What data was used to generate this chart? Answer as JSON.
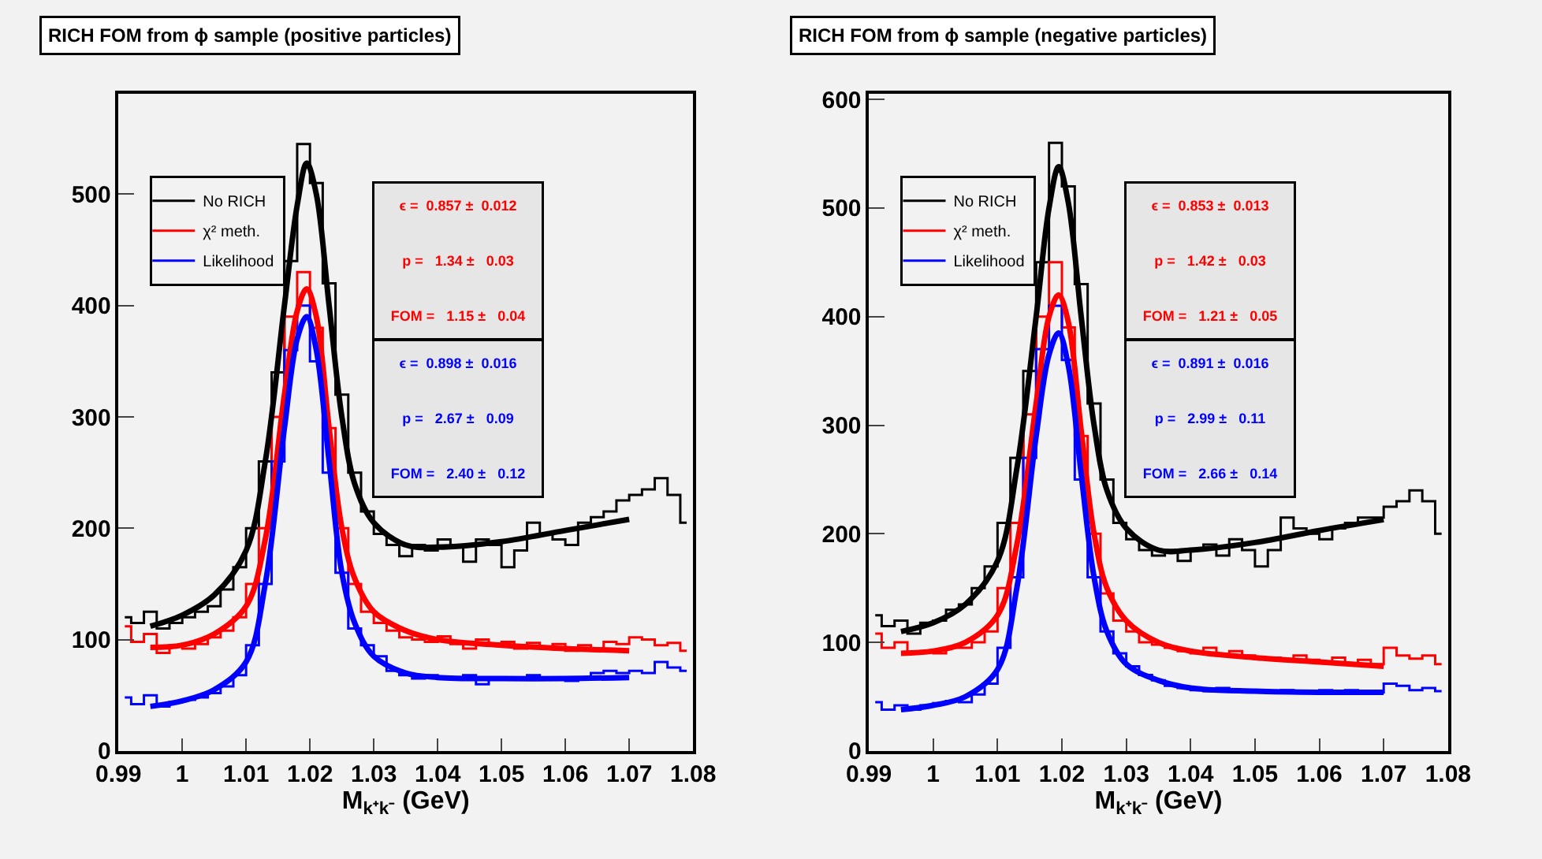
{
  "chart_data": [
    {
      "type": "step",
      "title": "RICH FOM from ϕ sample (positive particles)",
      "xlabel": "M$_{k⁺k⁻}$ (GeV)",
      "xlim": [
        0.99,
        1.08
      ],
      "xticks": [
        0.99,
        1,
        1.01,
        1.02,
        1.03,
        1.04,
        1.05,
        1.06,
        1.07,
        1.08
      ],
      "ylim": [
        0,
        590
      ],
      "yticks": [
        0,
        100,
        200,
        300,
        400,
        500
      ],
      "grid": false,
      "legend": "top left",
      "marker": "none",
      "line_style": "solid",
      "annotations": [
        "ϵ =  0.857 ±  0.012\np =   1.34 ±   0.03\nFOM =   1.15 ±   0.04",
        "ϵ =  0.898 ±  0.016\np =   2.67 ±   0.09\nFOM =   2.40 ±   0.12"
      ],
      "series": [
        {
          "name": "No RICH",
          "color": "#000000",
          "x": [
            0.991,
            0.993,
            0.995,
            0.997,
            0.999,
            1.001,
            1.003,
            1.005,
            1.007,
            1.009,
            1.011,
            1.013,
            1.015,
            1.017,
            1.019,
            1.021,
            1.023,
            1.025,
            1.027,
            1.029,
            1.031,
            1.033,
            1.035,
            1.037,
            1.039,
            1.041,
            1.043,
            1.045,
            1.047,
            1.049,
            1.051,
            1.053,
            1.055,
            1.057,
            1.059,
            1.061,
            1.063,
            1.065,
            1.067,
            1.069,
            1.071,
            1.073,
            1.075,
            1.077,
            1.079
          ],
          "values": [
            120,
            115,
            125,
            110,
            115,
            120,
            125,
            130,
            145,
            165,
            200,
            260,
            340,
            440,
            545,
            510,
            420,
            320,
            250,
            215,
            195,
            185,
            175,
            185,
            180,
            190,
            185,
            170,
            190,
            185,
            165,
            180,
            205,
            195,
            190,
            185,
            205,
            210,
            215,
            225,
            230,
            235,
            245,
            230,
            205
          ]
        },
        {
          "name": "χ² meth.",
          "color": "#ff0000",
          "x": [
            0.991,
            0.993,
            0.995,
            0.997,
            0.999,
            1.001,
            1.003,
            1.005,
            1.007,
            1.009,
            1.011,
            1.013,
            1.015,
            1.017,
            1.019,
            1.021,
            1.023,
            1.025,
            1.027,
            1.029,
            1.031,
            1.033,
            1.035,
            1.037,
            1.039,
            1.041,
            1.043,
            1.045,
            1.047,
            1.049,
            1.051,
            1.053,
            1.055,
            1.057,
            1.059,
            1.061,
            1.063,
            1.065,
            1.067,
            1.069,
            1.071,
            1.073,
            1.075,
            1.077,
            1.079
          ],
          "values": [
            112,
            98,
            105,
            88,
            95,
            92,
            96,
            102,
            108,
            120,
            150,
            200,
            300,
            390,
            430,
            380,
            290,
            200,
            150,
            125,
            115,
            108,
            102,
            100,
            98,
            103,
            96,
            92,
            100,
            95,
            98,
            92,
            97,
            93,
            96,
            90,
            95,
            92,
            98,
            96,
            102,
            100,
            95,
            97,
            90
          ]
        },
        {
          "name": "Likelihood",
          "color": "#0000ff",
          "x": [
            0.991,
            0.993,
            0.995,
            0.997,
            0.999,
            1.001,
            1.003,
            1.005,
            1.007,
            1.009,
            1.011,
            1.013,
            1.015,
            1.017,
            1.019,
            1.021,
            1.023,
            1.025,
            1.027,
            1.029,
            1.031,
            1.033,
            1.035,
            1.037,
            1.039,
            1.041,
            1.043,
            1.045,
            1.047,
            1.049,
            1.051,
            1.053,
            1.055,
            1.057,
            1.059,
            1.061,
            1.063,
            1.065,
            1.067,
            1.069,
            1.071,
            1.073,
            1.075,
            1.077,
            1.079
          ],
          "values": [
            48,
            42,
            50,
            40,
            44,
            46,
            48,
            52,
            58,
            68,
            95,
            150,
            260,
            360,
            400,
            350,
            250,
            160,
            110,
            95,
            85,
            72,
            68,
            65,
            68,
            66,
            65,
            68,
            60,
            66,
            65,
            64,
            68,
            66,
            65,
            63,
            66,
            70,
            72,
            70,
            72,
            70,
            80,
            75,
            72
          ]
        },
        {
          "type": "line",
          "color": "#000000",
          "x": [
            0.995,
            1.0,
            1.005,
            1.01,
            1.013,
            1.016,
            1.018,
            1.0195,
            1.021,
            1.023,
            1.025,
            1.027,
            1.03,
            1.035,
            1.04,
            1.05,
            1.06,
            1.07
          ],
          "values": [
            112,
            122,
            140,
            180,
            260,
            400,
            490,
            528,
            500,
            400,
            300,
            240,
            205,
            185,
            183,
            188,
            198,
            208
          ]
        },
        {
          "type": "line",
          "color": "#ff0000",
          "x": [
            0.995,
            1.0,
            1.005,
            1.01,
            1.013,
            1.016,
            1.018,
            1.0195,
            1.021,
            1.023,
            1.025,
            1.027,
            1.03,
            1.035,
            1.04,
            1.05,
            1.06,
            1.07
          ],
          "values": [
            93,
            95,
            105,
            130,
            190,
            320,
            395,
            415,
            390,
            290,
            200,
            155,
            125,
            108,
            100,
            95,
            92,
            90
          ]
        },
        {
          "type": "line",
          "color": "#0000ff",
          "x": [
            0.995,
            1.0,
            1.005,
            1.01,
            1.013,
            1.016,
            1.018,
            1.0195,
            1.021,
            1.023,
            1.025,
            1.027,
            1.03,
            1.035,
            1.04,
            1.05,
            1.06,
            1.07
          ],
          "values": [
            40,
            45,
            55,
            80,
            150,
            290,
            370,
            390,
            360,
            260,
            160,
            115,
            85,
            70,
            66,
            65,
            65,
            66
          ]
        }
      ]
    },
    {
      "type": "step",
      "title": "RICH FOM from ϕ sample (negative particles)",
      "xlabel": "M$_{k⁺k⁻}$ (GeV)",
      "xlim": [
        0.99,
        1.08
      ],
      "xticks": [
        0.99,
        1,
        1.01,
        1.02,
        1.03,
        1.04,
        1.05,
        1.06,
        1.07,
        1.08
      ],
      "ylim": [
        0,
        605
      ],
      "yticks": [
        0,
        100,
        200,
        300,
        400,
        500,
        600
      ],
      "grid": false,
      "legend": "top left",
      "marker": "none",
      "line_style": "solid",
      "annotations": [
        "ϵ =  0.853 ±  0.013\np =   1.42 ±   0.03\nFOM =   1.21 ±   0.05",
        "ϵ =  0.891 ±  0.016\np =   2.99 ±   0.11\nFOM =   2.66 ±   0.14"
      ],
      "series": [
        {
          "name": "No RICH",
          "color": "#000000",
          "x": [
            0.991,
            0.993,
            0.995,
            0.997,
            0.999,
            1.001,
            1.003,
            1.005,
            1.007,
            1.009,
            1.011,
            1.013,
            1.015,
            1.017,
            1.019,
            1.021,
            1.023,
            1.025,
            1.027,
            1.029,
            1.031,
            1.033,
            1.035,
            1.037,
            1.039,
            1.041,
            1.043,
            1.045,
            1.047,
            1.049,
            1.051,
            1.053,
            1.055,
            1.057,
            1.059,
            1.061,
            1.063,
            1.065,
            1.067,
            1.069,
            1.071,
            1.073,
            1.075,
            1.077,
            1.079
          ],
          "values": [
            125,
            115,
            120,
            108,
            118,
            120,
            130,
            135,
            150,
            170,
            210,
            270,
            350,
            450,
            560,
            520,
            430,
            320,
            250,
            210,
            195,
            185,
            180,
            185,
            175,
            185,
            190,
            180,
            195,
            185,
            170,
            185,
            215,
            205,
            200,
            195,
            205,
            210,
            215,
            215,
            225,
            230,
            240,
            230,
            200
          ]
        },
        {
          "name": "χ² meth.",
          "color": "#ff0000",
          "x": [
            0.991,
            0.993,
            0.995,
            0.997,
            0.999,
            1.001,
            1.003,
            1.005,
            1.007,
            1.009,
            1.011,
            1.013,
            1.015,
            1.017,
            1.019,
            1.021,
            1.023,
            1.025,
            1.027,
            1.029,
            1.031,
            1.033,
            1.035,
            1.037,
            1.039,
            1.041,
            1.043,
            1.045,
            1.047,
            1.049,
            1.051,
            1.053,
            1.055,
            1.057,
            1.059,
            1.061,
            1.063,
            1.065,
            1.067,
            1.069,
            1.071,
            1.073,
            1.075,
            1.077,
            1.079
          ],
          "values": [
            108,
            95,
            100,
            90,
            92,
            90,
            95,
            95,
            100,
            110,
            150,
            210,
            310,
            400,
            450,
            390,
            290,
            200,
            145,
            120,
            110,
            100,
            98,
            95,
            92,
            90,
            95,
            88,
            92,
            88,
            85,
            86,
            84,
            88,
            84,
            82,
            86,
            80,
            84,
            80,
            95,
            88,
            85,
            88,
            80
          ]
        },
        {
          "name": "Likelihood",
          "color": "#0000ff",
          "x": [
            0.991,
            0.993,
            0.995,
            0.997,
            0.999,
            1.001,
            1.003,
            1.005,
            1.007,
            1.009,
            1.011,
            1.013,
            1.015,
            1.017,
            1.019,
            1.021,
            1.023,
            1.025,
            1.027,
            1.029,
            1.031,
            1.033,
            1.035,
            1.037,
            1.039,
            1.041,
            1.043,
            1.045,
            1.047,
            1.049,
            1.051,
            1.053,
            1.055,
            1.057,
            1.059,
            1.061,
            1.063,
            1.065,
            1.067,
            1.069,
            1.071,
            1.073,
            1.075,
            1.077,
            1.079
          ],
          "values": [
            45,
            38,
            42,
            38,
            42,
            44,
            46,
            45,
            52,
            62,
            95,
            160,
            270,
            370,
            410,
            360,
            250,
            160,
            110,
            90,
            78,
            70,
            65,
            60,
            58,
            56,
            55,
            58,
            55,
            56,
            55,
            54,
            56,
            55,
            55,
            56,
            55,
            56,
            55,
            54,
            62,
            60,
            56,
            58,
            55
          ]
        },
        {
          "type": "line",
          "color": "#000000",
          "x": [
            0.995,
            1.0,
            1.005,
            1.01,
            1.013,
            1.016,
            1.018,
            1.0195,
            1.021,
            1.023,
            1.025,
            1.027,
            1.03,
            1.035,
            1.04,
            1.05,
            1.06,
            1.07
          ],
          "values": [
            110,
            118,
            135,
            175,
            260,
            400,
            500,
            538,
            505,
            400,
            300,
            240,
            205,
            185,
            185,
            192,
            203,
            213
          ]
        },
        {
          "type": "line",
          "color": "#ff0000",
          "x": [
            0.995,
            1.0,
            1.005,
            1.01,
            1.013,
            1.016,
            1.018,
            1.0195,
            1.021,
            1.023,
            1.025,
            1.027,
            1.03,
            1.035,
            1.04,
            1.05,
            1.06,
            1.07
          ],
          "values": [
            90,
            92,
            100,
            125,
            190,
            320,
            400,
            420,
            395,
            295,
            200,
            150,
            120,
            100,
            92,
            86,
            82,
            78
          ]
        },
        {
          "type": "line",
          "color": "#0000ff",
          "x": [
            0.995,
            1.0,
            1.005,
            1.01,
            1.013,
            1.016,
            1.018,
            1.0195,
            1.021,
            1.023,
            1.025,
            1.027,
            1.03,
            1.035,
            1.04,
            1.05,
            1.06,
            1.07
          ],
          "values": [
            38,
            42,
            50,
            75,
            150,
            290,
            365,
            385,
            355,
            255,
            160,
            110,
            80,
            65,
            58,
            55,
            54,
            54
          ]
        }
      ]
    }
  ]
}
